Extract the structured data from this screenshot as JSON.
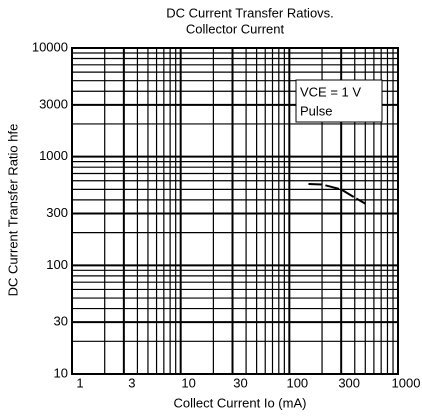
{
  "chart_data": {
    "type": "line",
    "title": [
      "DC Current Transfer Ratiovs.",
      "Collector Current"
    ],
    "x_label": "Collect Current Io (mA)",
    "y_label": "DC Current Transfer  Ratio hfe",
    "annotation": [
      "VCE = 1 V",
      "Pulse"
    ],
    "x": [
      150,
      200,
      300,
      400,
      500
    ],
    "series": [
      {
        "color": "#000000",
        "values": [
          560,
          555,
          500,
          420,
          370
        ]
      }
    ],
    "xlim": [
      1,
      1000
    ],
    "ylim": [
      10,
      10000
    ],
    "xticks": [
      1,
      3,
      10,
      30,
      100,
      300,
      1000
    ],
    "yticks": [
      10,
      30,
      100,
      300,
      1000,
      3000,
      10000
    ],
    "xscale": "log",
    "yscale": "log",
    "grid": true
  }
}
